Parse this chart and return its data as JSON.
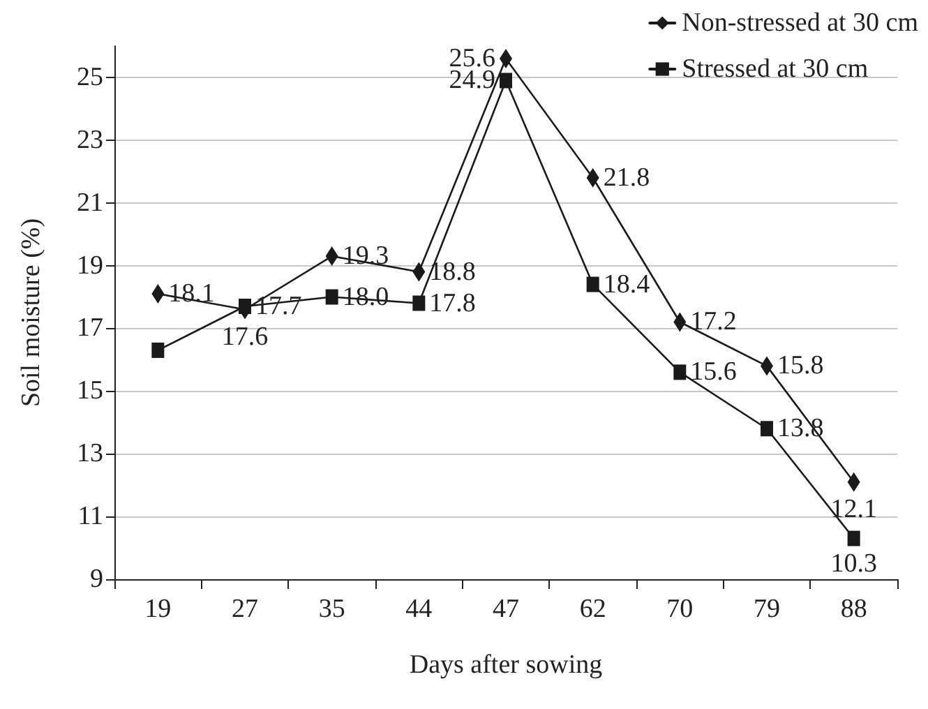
{
  "chart_data": {
    "type": "line",
    "xlabel": "Days after sowing",
    "ylabel": "Soil moisture (%)",
    "categories": [
      "19",
      "27",
      "35",
      "44",
      "47",
      "62",
      "70",
      "79",
      "88"
    ],
    "series": [
      {
        "name": "Non-stressed at 30 cm",
        "color": "#1a1a1a",
        "marker": "diamond",
        "values": [
          18.1,
          17.6,
          19.3,
          18.8,
          25.6,
          21.8,
          17.2,
          15.8,
          12.1
        ],
        "value_labels": [
          "18.1",
          "17.6",
          "19.3",
          "18.8",
          "25.6",
          "21.8",
          "17.2",
          "15.8",
          "12.1"
        ]
      },
      {
        "name": "Stressed at 30 cm",
        "color": "#1a1a1a",
        "marker": "square",
        "values": [
          16.3,
          17.7,
          18.0,
          17.8,
          24.9,
          18.4,
          15.6,
          13.8,
          10.3
        ],
        "value_labels": [
          null,
          "17.7",
          "18.0",
          "17.8",
          "24.9",
          "18.4",
          "15.6",
          "13.8",
          "10.3"
        ]
      }
    ],
    "ylim": [
      9,
      26
    ],
    "yticks": [
      9,
      11,
      13,
      15,
      17,
      19,
      21,
      23,
      25
    ],
    "grid": "y",
    "legend": "top right",
    "line_style": "solid"
  }
}
